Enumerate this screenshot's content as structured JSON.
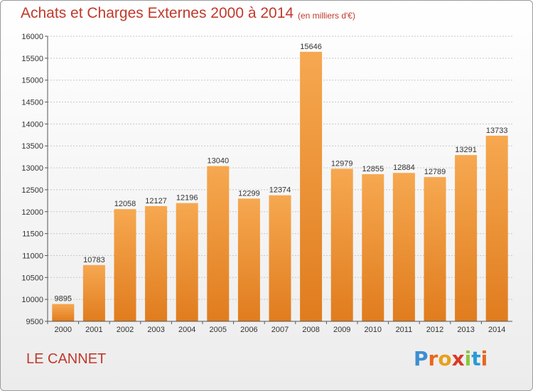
{
  "title": "Achats et Charges Externes 2000 à 2014",
  "subtitle": "(en milliers d'€)",
  "city": "LE CANNET",
  "brand": {
    "letters": [
      "P",
      "r",
      "o",
      "x",
      "i",
      "t",
      "i"
    ],
    "colors": [
      "#3d8fd1",
      "#e8671c",
      "#e8a01c",
      "#d83a2a",
      "#8cc63f",
      "#2c9ad6",
      "#e8671c"
    ]
  },
  "colors": {
    "bar_top": "#f6a850",
    "bar_bottom": "#e07c1e",
    "grid": "#c8c8c8",
    "text": "#c0392b"
  },
  "chart_data": {
    "type": "bar",
    "categories": [
      "2000",
      "2001",
      "2002",
      "2003",
      "2004",
      "2005",
      "2006",
      "2007",
      "2008",
      "2009",
      "2010",
      "2011",
      "2012",
      "2013",
      "2014"
    ],
    "values": [
      9895,
      10783,
      12058,
      12127,
      12196,
      13040,
      12299,
      12374,
      15646,
      12979,
      12855,
      12884,
      12789,
      13291,
      13733
    ],
    "ylim": [
      9500,
      16000
    ],
    "yticks": [
      9500,
      10000,
      10500,
      11000,
      11500,
      12000,
      12500,
      13000,
      13500,
      14000,
      14500,
      15000,
      15500,
      16000
    ],
    "grid": true,
    "data_labels": true
  }
}
